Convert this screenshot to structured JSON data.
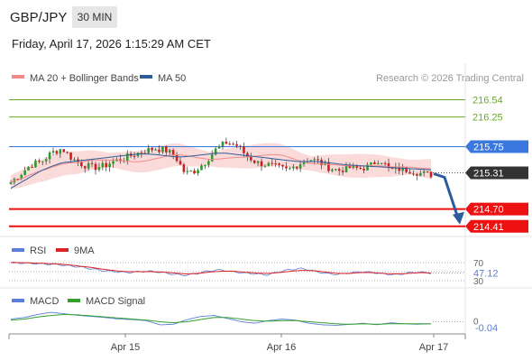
{
  "header": {
    "symbol": "GBP/JPY",
    "timeframe": "30 MIN",
    "datetime": "Friday, April 17, 2026 1:15:29 AM CET"
  },
  "colors": {
    "resistance": "#6aaa2a",
    "pivot": "#3a78e0",
    "support": "#ee1111",
    "ma20": "#f08a8a",
    "bollinger_fill": "#fbdada",
    "ma50": "#2e5e9a",
    "candle_up": "#2e9a2e",
    "candle_down": "#d81c1c",
    "current": "#333333",
    "arrow": "#2c5c9c",
    "rsi": "#5b7fd9",
    "rsi_ma": "#dd2222",
    "macd": "#5b7fd9",
    "macd_signal": "#33a02c"
  },
  "chart_data": [
    {
      "type": "line",
      "panel": "price",
      "legend": [
        {
          "name": "MA 20 + Bollinger Bands",
          "color": "#f08a8a"
        },
        {
          "name": "MA 50",
          "color": "#2e5e9a"
        }
      ],
      "watermark": "Research © 2026 Trading Central",
      "ylim": [
        214.3,
        216.7
      ],
      "x_ticks": [
        "Apr 15",
        "Apr 16",
        "Apr 17"
      ],
      "levels": [
        {
          "value": 216.54,
          "label": "216.54",
          "kind": "resistance"
        },
        {
          "value": 216.25,
          "label": "216.25",
          "kind": "resistance"
        },
        {
          "value": 215.75,
          "label": "215.75",
          "kind": "pivot"
        },
        {
          "value": 214.7,
          "label": "214.70",
          "kind": "support"
        },
        {
          "value": 214.41,
          "label": "214.41",
          "kind": "support"
        }
      ],
      "current": {
        "value": 215.31,
        "label": "215.31"
      },
      "arrow": {
        "from": 215.31,
        "to": 214.41
      },
      "price_path": [
        215.15,
        215.3,
        215.45,
        215.5,
        215.65,
        215.72,
        215.55,
        215.45,
        215.4,
        215.42,
        215.5,
        215.55,
        215.62,
        215.68,
        215.72,
        215.7,
        215.6,
        215.3,
        215.35,
        215.5,
        215.7,
        215.82,
        215.78,
        215.6,
        215.48,
        215.45,
        215.4,
        215.35,
        215.45,
        215.55,
        215.5,
        215.4,
        215.35,
        215.4,
        215.38,
        215.42,
        215.55,
        215.35,
        215.38,
        215.35,
        215.3,
        215.28
      ],
      "ma50_path": [
        215.05,
        215.15,
        215.25,
        215.35,
        215.42,
        215.48,
        215.5,
        215.52,
        215.54,
        215.56,
        215.58,
        215.6,
        215.62,
        215.63,
        215.62,
        215.6,
        215.58,
        215.58,
        215.6,
        215.62,
        215.64,
        215.64,
        215.62,
        215.6,
        215.58,
        215.56,
        215.54,
        215.52,
        215.5,
        215.5,
        215.5,
        215.48,
        215.46,
        215.44,
        215.43,
        215.42,
        215.41,
        215.4,
        215.39,
        215.38,
        215.37,
        215.36
      ]
    },
    {
      "type": "line",
      "panel": "rsi",
      "legend": [
        {
          "name": "RSI",
          "color": "#5b7fd9"
        },
        {
          "name": "9MA",
          "color": "#dd2222"
        }
      ],
      "ylim": [
        20,
        80
      ],
      "tick_labels": [
        "70",
        "30"
      ],
      "current": {
        "value": 47.12,
        "label": "47.12"
      },
      "rsi_path": [
        70,
        69,
        68,
        67,
        66,
        63,
        60,
        56,
        52,
        50,
        48,
        50,
        51,
        48,
        44,
        42,
        46,
        52,
        54,
        50,
        47,
        45,
        43,
        50,
        55,
        57,
        51,
        46,
        44,
        47,
        50,
        48,
        45,
        43,
        47,
        49,
        47
      ],
      "ma_path": [
        70,
        70,
        69,
        68,
        67,
        65,
        62,
        59,
        55,
        52,
        50,
        50,
        50,
        49,
        47,
        45,
        46,
        49,
        51,
        51,
        49,
        47,
        46,
        48,
        51,
        53,
        52,
        49,
        46,
        46,
        48,
        48,
        46,
        45,
        46,
        48,
        47
      ]
    },
    {
      "type": "line",
      "panel": "macd",
      "legend": [
        {
          "name": "MACD",
          "color": "#5b7fd9"
        },
        {
          "name": "MACD Signal",
          "color": "#33a02c"
        }
      ],
      "ylim": [
        -0.2,
        0.25
      ],
      "tick_labels": [
        "0",
        "-0.04"
      ],
      "current": {
        "value": -0.04,
        "label": "-0.04"
      },
      "macd_path": [
        0.05,
        0.08,
        0.14,
        0.18,
        0.15,
        0.12,
        0.1,
        0.08,
        0.05,
        0.04,
        0.02,
        -0.06,
        -0.05,
        0.04,
        0.1,
        0.12,
        0.06,
        0.0,
        -0.03,
        0.02,
        0.05,
        0.03,
        -0.03,
        -0.06,
        -0.07,
        -0.05,
        -0.03,
        -0.06,
        -0.02,
        -0.04,
        -0.05,
        -0.04
      ],
      "signal_path": [
        0.03,
        0.05,
        0.09,
        0.12,
        0.14,
        0.13,
        0.11,
        0.09,
        0.07,
        0.05,
        0.03,
        0.0,
        -0.02,
        0.0,
        0.04,
        0.08,
        0.08,
        0.05,
        0.02,
        0.01,
        0.02,
        0.02,
        0.0,
        -0.02,
        -0.04,
        -0.05,
        -0.04,
        -0.05,
        -0.04,
        -0.04,
        -0.04,
        -0.04
      ]
    }
  ]
}
